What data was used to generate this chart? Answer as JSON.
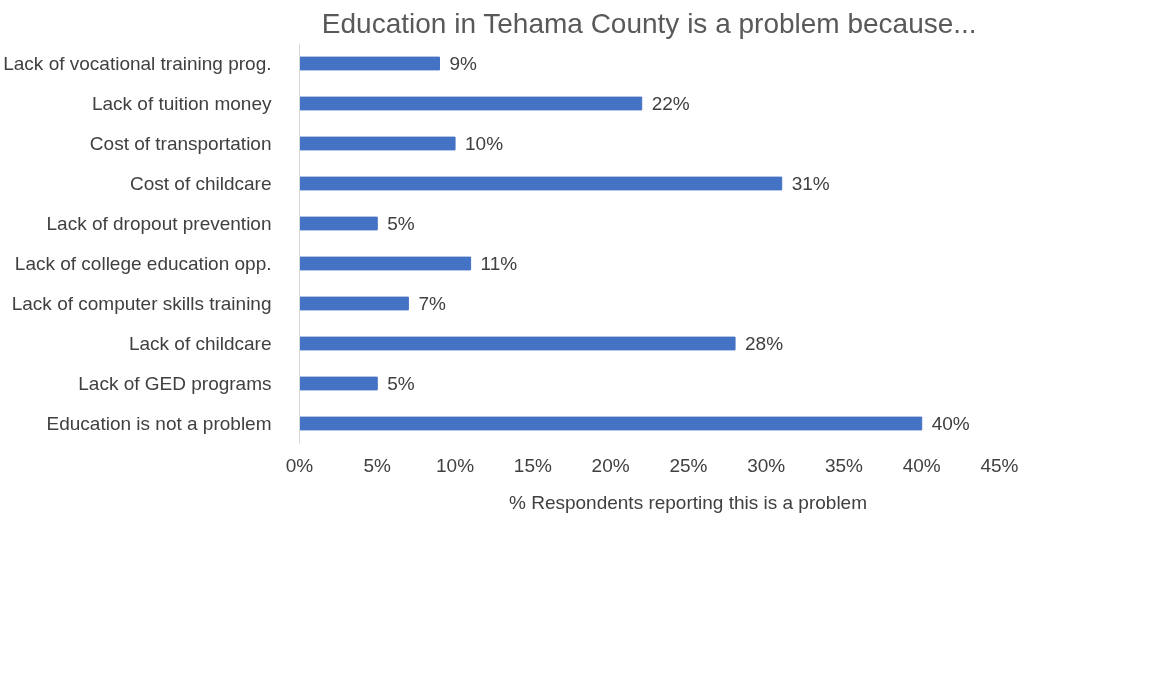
{
  "chart_data": {
    "type": "bar",
    "orientation": "horizontal",
    "title": "Education in Tehama County is a problem because...",
    "categories": [
      "Lack of vocational training prog.",
      "Lack of tuition money",
      "Cost of transportation",
      "Cost of childcare",
      "Lack of dropout prevention",
      "Lack of college education opp.",
      "Lack of computer skills training",
      "Lack of childcare",
      "Lack of GED programs",
      "Education is not a problem"
    ],
    "series": [
      {
        "name": "% Respondents reporting this is a problem",
        "color": "#4472c4",
        "values": [
          9,
          22,
          10,
          31,
          5,
          11,
          7,
          28,
          5,
          40
        ],
        "value_labels": [
          "9%",
          "22%",
          "10%",
          "31%",
          "5%",
          "11%",
          "7%",
          "28%",
          "5%",
          "40%"
        ]
      }
    ],
    "xlim": [
      0,
      45
    ],
    "xticks": [
      {
        "value": 0,
        "label": "0%"
      },
      {
        "value": 5,
        "label": "5%"
      },
      {
        "value": 10,
        "label": "10%"
      },
      {
        "value": 15,
        "label": "15%"
      },
      {
        "value": 20,
        "label": "20%"
      },
      {
        "value": 25,
        "label": "25%"
      },
      {
        "value": 30,
        "label": "30%"
      },
      {
        "value": 35,
        "label": "35%"
      },
      {
        "value": 40,
        "label": "40%"
      },
      {
        "value": 45,
        "label": "45%"
      }
    ],
    "grid": false,
    "legend": "bottom"
  }
}
